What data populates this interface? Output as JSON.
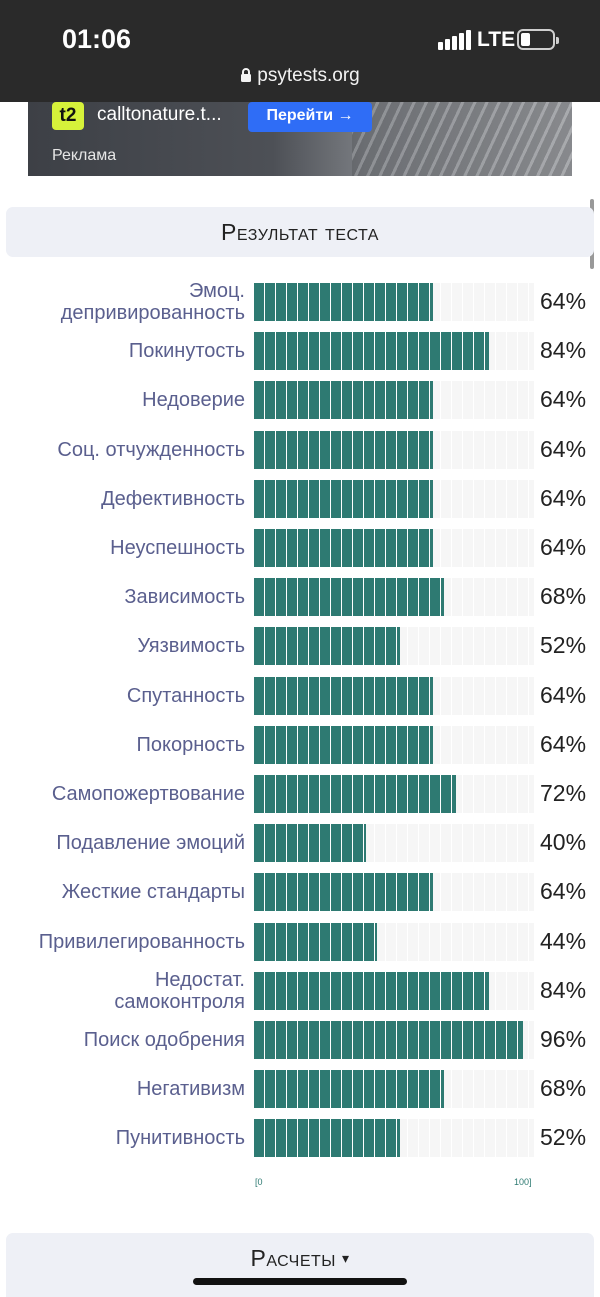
{
  "status_bar": {
    "time": "01:06",
    "network": "LTE",
    "battery_level": 0.2,
    "url": "psytests.org"
  },
  "ad": {
    "logo_text": "t2",
    "site": "calltonature.t...",
    "button_label": "Перейти →",
    "label": "Реклама"
  },
  "result_header": "Результат теста",
  "calc_header": {
    "label": "Расчеты",
    "arrow": "▾"
  },
  "chart_data": {
    "type": "bar",
    "orientation": "horizontal",
    "categories": [
      [
        "Эмоц.",
        "депривированность"
      ],
      [
        "Покинутость"
      ],
      [
        "Недоверие"
      ],
      [
        "Соц. отчужденность"
      ],
      [
        "Дефективность"
      ],
      [
        "Неуспешность"
      ],
      [
        "Зависимость"
      ],
      [
        "Уязвимость"
      ],
      [
        "Спутанность"
      ],
      [
        "Покорность"
      ],
      [
        "Самопожертвование"
      ],
      [
        "Подавление эмоций"
      ],
      [
        "Жесткие стандарты"
      ],
      [
        "Привилегированность"
      ],
      [
        "Недостат.",
        "самоконтроля"
      ],
      [
        "Поиск одобрения"
      ],
      [
        "Негативизм"
      ],
      [
        "Пунитивность"
      ]
    ],
    "values": [
      64,
      84,
      64,
      64,
      64,
      64,
      68,
      52,
      64,
      64,
      72,
      40,
      64,
      44,
      84,
      96,
      68,
      52
    ],
    "value_labels": [
      "64%",
      "84%",
      "64%",
      "64%",
      "64%",
      "64%",
      "68%",
      "52%",
      "64%",
      "64%",
      "72%",
      "40%",
      "64%",
      "44%",
      "84%",
      "96%",
      "68%",
      "52%"
    ],
    "axis_min_label": "[0",
    "axis_max_label": "100]",
    "xlim": [
      0,
      100
    ],
    "bar_color": "#2e7a72",
    "track_color": "#f6f6f6",
    "label_color": "#5a5f8e"
  }
}
